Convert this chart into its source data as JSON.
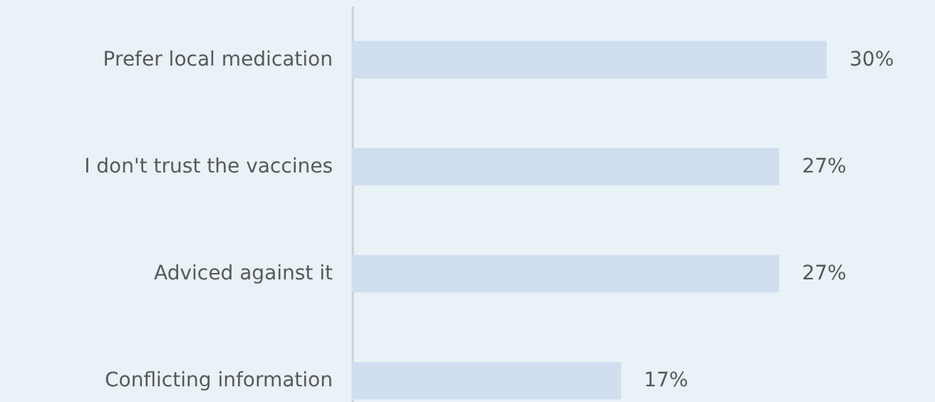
{
  "chart_data": {
    "type": "bar",
    "orientation": "horizontal",
    "categories": [
      "Prefer local medication",
      "I don't trust the vaccines",
      "Adviced against it",
      "Conflicting information"
    ],
    "values": [
      30,
      27,
      27,
      17
    ],
    "value_labels": [
      "30%",
      "27%",
      "27%",
      "17%"
    ],
    "color": "#d0def0",
    "grid": false
  }
}
